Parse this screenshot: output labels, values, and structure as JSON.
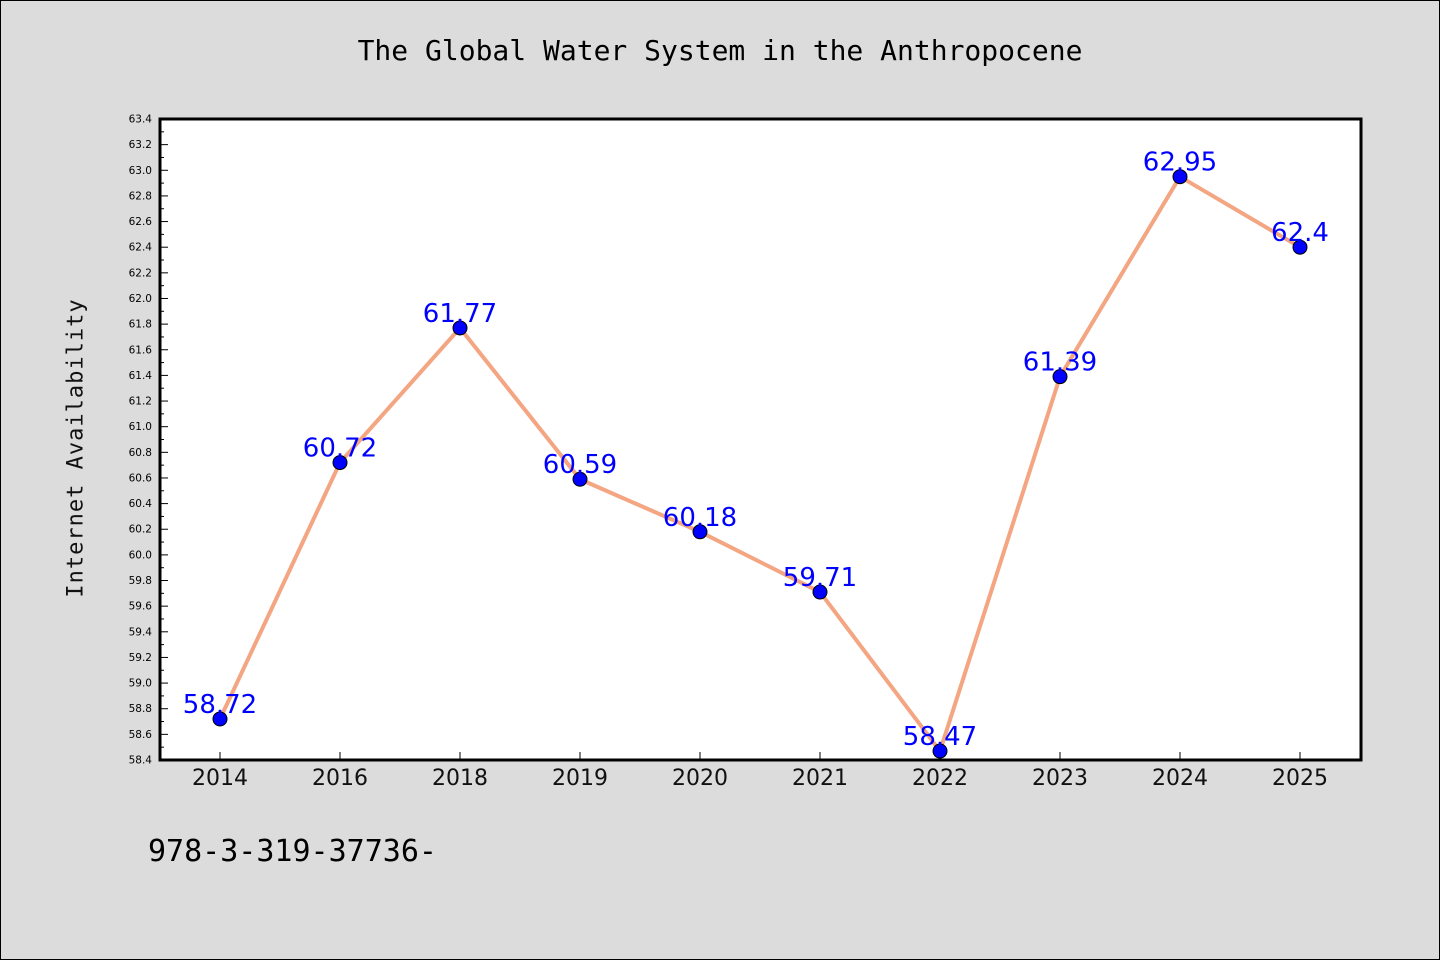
{
  "chart_data": {
    "type": "line",
    "title": "The Global Water System in the Anthropocene",
    "xlabel": "",
    "ylabel": "Internet Availability",
    "categories": [
      "2014",
      "2016",
      "2018",
      "2019",
      "2020",
      "2021",
      "2022",
      "2023",
      "2024",
      "2025"
    ],
    "series": [
      {
        "values": [
          58.72,
          60.72,
          61.77,
          60.59,
          60.18,
          59.71,
          58.47,
          61.39,
          62.95,
          62.4
        ],
        "labels": [
          "58.72",
          "60.72",
          "61.77",
          "60.59",
          "60.18",
          "59.71",
          "58.47",
          "61.39",
          "62.95",
          "62.4"
        ]
      }
    ],
    "ylim": [
      58.4,
      63.4
    ],
    "ytick_step": 0.2,
    "grid": false,
    "line_color": "#f4a582",
    "marker_color": "#0000ff",
    "label_color": "#0000ff"
  },
  "footer_text": "978-3-319-37736-"
}
